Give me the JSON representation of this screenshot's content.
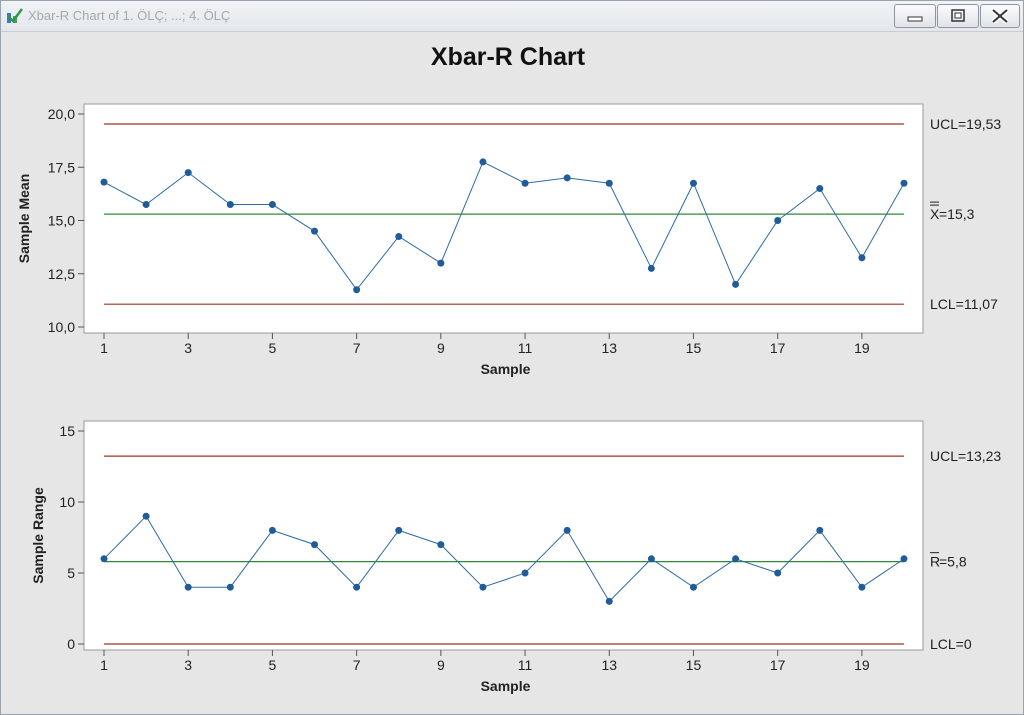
{
  "window": {
    "title": "Xbar-R Chart of 1. ÖLÇ; ...; 4. ÖLÇ",
    "icon": "minitab-checkmark-icon",
    "controls": [
      "minimize-icon",
      "maximize-icon",
      "close-icon"
    ]
  },
  "chart_data": [
    {
      "type": "line",
      "title": "Xbar-R Chart",
      "xlabel": "Sample",
      "ylabel": "Sample Mean",
      "xlim": [
        1,
        20
      ],
      "ylim": [
        10,
        20
      ],
      "x_ticks": [
        1,
        3,
        5,
        7,
        9,
        11,
        13,
        15,
        17,
        19
      ],
      "y_ticks": [
        "10,0",
        "12,5",
        "15,0",
        "17,5",
        "20,0"
      ],
      "x": [
        1,
        2,
        3,
        4,
        5,
        6,
        7,
        8,
        9,
        10,
        11,
        12,
        13,
        14,
        15,
        16,
        17,
        18,
        19,
        20
      ],
      "values": [
        16.8,
        15.75,
        17.25,
        15.75,
        15.75,
        14.5,
        11.75,
        14.25,
        13.0,
        17.75,
        16.75,
        17.0,
        16.75,
        12.75,
        16.75,
        12.0,
        15.0,
        16.5,
        13.25,
        16.75
      ],
      "control_lines": {
        "ucl": {
          "value": 19.53,
          "label": "UCL=19,53"
        },
        "center": {
          "value": 15.3,
          "label_symbol": "X",
          "label": "=15,3",
          "overline": 2
        },
        "lcl": {
          "value": 11.07,
          "label": "LCL=11,07"
        }
      },
      "grid": false,
      "colors": {
        "data": "#2e6ca4",
        "limit": "#a03020",
        "center": "#2e8a3a"
      }
    },
    {
      "type": "line",
      "title": "",
      "xlabel": "Sample",
      "ylabel": "Sample Range",
      "xlim": [
        1,
        20
      ],
      "ylim": [
        0,
        15
      ],
      "x_ticks": [
        1,
        3,
        5,
        7,
        9,
        11,
        13,
        15,
        17,
        19
      ],
      "y_ticks": [
        "0",
        "5",
        "10",
        "15"
      ],
      "x": [
        1,
        2,
        3,
        4,
        5,
        6,
        7,
        8,
        9,
        10,
        11,
        12,
        13,
        14,
        15,
        16,
        17,
        18,
        19,
        20
      ],
      "values": [
        6,
        9,
        4,
        4,
        8,
        7,
        4,
        8,
        7,
        4,
        5,
        8,
        3,
        6,
        4,
        6,
        5,
        8,
        4,
        6
      ],
      "control_lines": {
        "ucl": {
          "value": 13.23,
          "label": "UCL=13,23"
        },
        "center": {
          "value": 5.8,
          "label_symbol": "R",
          "label": "=5,8",
          "overline": 1
        },
        "lcl": {
          "value": 0,
          "label": "LCL=0"
        }
      },
      "grid": false,
      "colors": {
        "data": "#2e6ca4",
        "limit": "#a03020",
        "center": "#2e8a3a"
      }
    }
  ]
}
